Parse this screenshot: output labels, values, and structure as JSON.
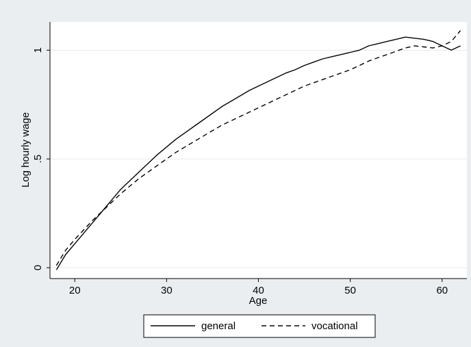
{
  "chart_data": {
    "type": "line",
    "title": "",
    "xlabel": "Age",
    "ylabel": "Log hourly wage",
    "xlim": [
      17.3,
      62.7
    ],
    "ylim": [
      -0.05,
      1.13
    ],
    "xticks": [
      20,
      30,
      40,
      50,
      60
    ],
    "xtick_labels": [
      "20",
      "30",
      "40",
      "50",
      "60"
    ],
    "yticks": [
      0,
      0.5,
      1
    ],
    "ytick_labels": [
      "0",
      ".5",
      "1"
    ],
    "grid": "horizontal",
    "legend_position": "bottom",
    "series": [
      {
        "name": "general",
        "style": "solid",
        "x": [
          18,
          19,
          20,
          21,
          22,
          23,
          24,
          25,
          26,
          27,
          28,
          29,
          30,
          31,
          32,
          33,
          34,
          35,
          36,
          37,
          38,
          39,
          40,
          41,
          42,
          43,
          44,
          45,
          46,
          47,
          48,
          49,
          50,
          51,
          52,
          53,
          54,
          55,
          56,
          57,
          58,
          59,
          60,
          61,
          62
        ],
        "values": [
          -0.01,
          0.06,
          0.11,
          0.16,
          0.21,
          0.26,
          0.31,
          0.36,
          0.4,
          0.44,
          0.48,
          0.52,
          0.555,
          0.59,
          0.62,
          0.65,
          0.68,
          0.71,
          0.74,
          0.765,
          0.79,
          0.815,
          0.835,
          0.855,
          0.875,
          0.895,
          0.91,
          0.93,
          0.945,
          0.96,
          0.97,
          0.98,
          0.99,
          1.0,
          1.02,
          1.03,
          1.04,
          1.05,
          1.06,
          1.055,
          1.05,
          1.04,
          1.02,
          1.0,
          1.02
        ]
      },
      {
        "name": "vocational",
        "style": "dashed",
        "x": [
          18,
          19,
          20,
          21,
          22,
          23,
          24,
          25,
          26,
          27,
          28,
          29,
          30,
          31,
          32,
          33,
          34,
          35,
          36,
          37,
          38,
          39,
          40,
          41,
          42,
          43,
          44,
          45,
          46,
          47,
          48,
          49,
          50,
          51,
          52,
          53,
          54,
          55,
          56,
          57,
          58,
          59,
          60,
          61,
          62
        ],
        "values": [
          0.01,
          0.08,
          0.13,
          0.175,
          0.22,
          0.26,
          0.3,
          0.34,
          0.375,
          0.41,
          0.44,
          0.47,
          0.5,
          0.53,
          0.555,
          0.58,
          0.605,
          0.63,
          0.655,
          0.675,
          0.695,
          0.715,
          0.735,
          0.755,
          0.775,
          0.795,
          0.815,
          0.835,
          0.85,
          0.865,
          0.88,
          0.895,
          0.91,
          0.93,
          0.95,
          0.965,
          0.98,
          0.995,
          1.01,
          1.02,
          1.015,
          1.01,
          1.02,
          1.04,
          1.09
        ]
      }
    ]
  }
}
